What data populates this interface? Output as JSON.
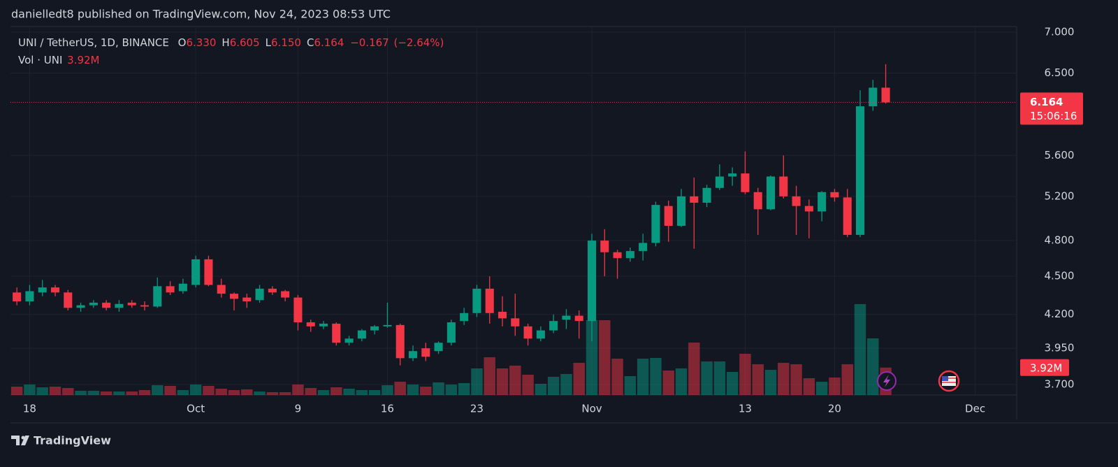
{
  "header": "danielledt8 published on TradingView.com, Nov 24, 2023 08:53 UTC",
  "footer": "TradingView",
  "chart_data": {
    "type": "candlestick",
    "symbol": "UNI / TetherUS, 1D, BINANCE",
    "ohlc_legend": [
      {
        "key": "O",
        "value": 6.33,
        "label": "6.330"
      },
      {
        "key": "H",
        "value": 6.605,
        "label": "6.605"
      },
      {
        "key": "L",
        "value": 6.15,
        "label": "6.150"
      },
      {
        "key": "C",
        "value": 6.164,
        "label": "6.164"
      }
    ],
    "change": {
      "value": -0.167,
      "label": "−0.167"
    },
    "change_pct": {
      "value": -2.64,
      "label": "(−2.64%)"
    },
    "volume_legend": "Vol · UNI",
    "current_volume": {
      "value": 3.92,
      "label": "3.92M"
    },
    "last_price": {
      "value": 6.164,
      "label": "6.164"
    },
    "countdown": "15:06:16",
    "up_color": "#089981",
    "down_color": "#f23645",
    "log_scale": true,
    "grid": true,
    "x": [
      "2023-09-17",
      "2023-09-18",
      "2023-09-19",
      "2023-09-20",
      "2023-09-21",
      "2023-09-22",
      "2023-09-23",
      "2023-09-24",
      "2023-09-25",
      "2023-09-26",
      "2023-09-27",
      "2023-09-28",
      "2023-09-29",
      "2023-09-30",
      "2023-10-01",
      "2023-10-02",
      "2023-10-03",
      "2023-10-04",
      "2023-10-05",
      "2023-10-06",
      "2023-10-07",
      "2023-10-08",
      "2023-10-09",
      "2023-10-10",
      "2023-10-11",
      "2023-10-12",
      "2023-10-13",
      "2023-10-14",
      "2023-10-15",
      "2023-10-16",
      "2023-10-17",
      "2023-10-18",
      "2023-10-19",
      "2023-10-20",
      "2023-10-21",
      "2023-10-22",
      "2023-10-23",
      "2023-10-24",
      "2023-10-25",
      "2023-10-26",
      "2023-10-27",
      "2023-10-28",
      "2023-10-29",
      "2023-10-30",
      "2023-10-31",
      "2023-11-01",
      "2023-11-02",
      "2023-11-03",
      "2023-11-04",
      "2023-11-05",
      "2023-11-06",
      "2023-11-07",
      "2023-11-08",
      "2023-11-09",
      "2023-11-10",
      "2023-11-11",
      "2023-11-12",
      "2023-11-13",
      "2023-11-14",
      "2023-11-15",
      "2023-11-16",
      "2023-11-17",
      "2023-11-18",
      "2023-11-19",
      "2023-11-20",
      "2023-11-21",
      "2023-11-22",
      "2023-11-23",
      "2023-11-24"
    ],
    "open": [
      4.37,
      4.3,
      4.37,
      4.41,
      4.37,
      4.25,
      4.27,
      4.29,
      4.25,
      4.29,
      4.27,
      4.26,
      4.42,
      4.38,
      4.43,
      4.64,
      4.43,
      4.36,
      4.33,
      4.31,
      4.4,
      4.38,
      4.33,
      4.14,
      4.11,
      4.13,
      3.99,
      4.02,
      4.08,
      4.11,
      4.12,
      3.88,
      3.95,
      3.93,
      3.99,
      4.15,
      4.21,
      4.4,
      4.22,
      4.17,
      4.11,
      4.02,
      4.08,
      4.16,
      4.19,
      4.15,
      4.8,
      4.7,
      4.65,
      4.71,
      4.78,
      5.11,
      4.93,
      5.2,
      5.14,
      5.28,
      5.39,
      5.42,
      5.24,
      5.08,
      5.39,
      5.2,
      5.11,
      5.06,
      5.24,
      5.19,
      4.85,
      6.12,
      6.33
    ],
    "high": [
      4.41,
      4.43,
      4.47,
      4.43,
      4.39,
      4.29,
      4.31,
      4.31,
      4.31,
      4.31,
      4.3,
      4.49,
      4.46,
      4.48,
      4.67,
      4.67,
      4.48,
      4.37,
      4.36,
      4.43,
      4.42,
      4.39,
      4.35,
      4.16,
      4.15,
      4.14,
      4.04,
      4.09,
      4.12,
      4.29,
      4.13,
      3.97,
      3.99,
      4.0,
      4.16,
      4.25,
      4.43,
      4.5,
      4.34,
      4.36,
      4.13,
      4.11,
      4.2,
      4.24,
      4.23,
      4.86,
      4.9,
      4.72,
      4.74,
      4.86,
      5.15,
      5.16,
      5.27,
      5.38,
      5.31,
      5.51,
      5.48,
      5.64,
      5.28,
      5.4,
      5.6,
      5.3,
      5.17,
      5.25,
      5.27,
      5.27,
      6.3,
      6.42,
      6.605
    ],
    "low": [
      4.27,
      4.27,
      4.34,
      4.34,
      4.23,
      4.22,
      4.25,
      4.23,
      4.22,
      4.25,
      4.23,
      4.25,
      4.35,
      4.36,
      4.41,
      4.42,
      4.33,
      4.23,
      4.25,
      4.29,
      4.35,
      4.3,
      4.08,
      4.07,
      4.09,
      3.97,
      3.97,
      4.0,
      4.05,
      4.1,
      3.83,
      3.86,
      3.86,
      3.91,
      3.97,
      4.12,
      4.18,
      4.13,
      4.11,
      4.04,
      3.97,
      4.0,
      4.06,
      4.09,
      4.02,
      4.0,
      4.5,
      4.48,
      4.62,
      4.63,
      4.75,
      4.79,
      4.92,
      4.73,
      5.1,
      5.26,
      5.3,
      5.22,
      4.85,
      5.07,
      5.18,
      4.85,
      4.82,
      4.97,
      5.15,
      4.83,
      4.83,
      6.07,
      6.15
    ],
    "close": [
      4.3,
      4.38,
      4.41,
      4.37,
      4.25,
      4.27,
      4.29,
      4.25,
      4.28,
      4.27,
      4.26,
      4.42,
      4.37,
      4.44,
      4.64,
      4.43,
      4.36,
      4.32,
      4.3,
      4.4,
      4.37,
      4.33,
      4.14,
      4.11,
      4.13,
      3.99,
      4.02,
      4.08,
      4.11,
      4.12,
      3.88,
      3.93,
      3.89,
      3.99,
      4.14,
      4.21,
      4.4,
      4.21,
      4.17,
      4.11,
      4.02,
      4.08,
      4.15,
      4.19,
      4.15,
      4.8,
      4.7,
      4.65,
      4.71,
      4.78,
      5.12,
      4.93,
      5.2,
      5.14,
      5.28,
      5.39,
      5.42,
      5.24,
      5.08,
      5.39,
      5.2,
      5.11,
      5.06,
      5.24,
      5.19,
      4.85,
      6.12,
      6.33,
      6.164
    ],
    "volume": [
      1.2,
      1.5,
      1.1,
      1.2,
      1.0,
      0.6,
      0.6,
      0.5,
      0.5,
      0.5,
      0.7,
      1.4,
      1.3,
      0.7,
      1.5,
      1.3,
      0.9,
      0.7,
      0.8,
      0.5,
      0.4,
      0.4,
      1.5,
      1.0,
      0.7,
      1.1,
      0.9,
      0.7,
      0.7,
      1.4,
      1.9,
      1.5,
      1.2,
      1.8,
      1.5,
      1.7,
      3.8,
      5.4,
      3.8,
      4.2,
      2.9,
      1.6,
      2.6,
      3.0,
      4.6,
      10.7,
      10.7,
      5.2,
      2.7,
      5.2,
      5.3,
      3.5,
      3.8,
      7.5,
      4.8,
      4.8,
      3.3,
      5.9,
      4.4,
      3.6,
      4.6,
      4.4,
      2.4,
      1.9,
      2.5,
      4.4,
      13.0,
      8.1,
      3.92
    ],
    "xlim": [
      "2023-09-16T12:00Z",
      "2023-12-04T06:00Z"
    ],
    "xticks": [
      {
        "value": "2023-09-18",
        "label": "18"
      },
      {
        "value": "2023-10-01",
        "label": "Oct"
      },
      {
        "value": "2023-10-09",
        "label": "9"
      },
      {
        "value": "2023-10-16",
        "label": "16"
      },
      {
        "value": "2023-10-23",
        "label": "23"
      },
      {
        "value": "2023-11-01",
        "label": "Nov"
      },
      {
        "value": "2023-11-13",
        "label": "13"
      },
      {
        "value": "2023-11-20",
        "label": "20"
      },
      {
        "value": "2023-12-01",
        "label": "Dec"
      }
    ],
    "ylim": [
      3.63,
      7.07
    ],
    "yticks": [
      {
        "value": 3.7,
        "label": "3.700"
      },
      {
        "value": 3.95,
        "label": "3.950"
      },
      {
        "value": 4.2,
        "label": "4.200"
      },
      {
        "value": 4.5,
        "label": "4.500"
      },
      {
        "value": 4.8,
        "label": "4.800"
      },
      {
        "value": 5.2,
        "label": "5.200"
      },
      {
        "value": 5.6,
        "label": "5.600"
      },
      {
        "value": 6.5,
        "label": "6.500"
      },
      {
        "value": 7,
        "label": "7.000"
      }
    ],
    "volume_ylim": [
      0,
      52.7
    ]
  }
}
